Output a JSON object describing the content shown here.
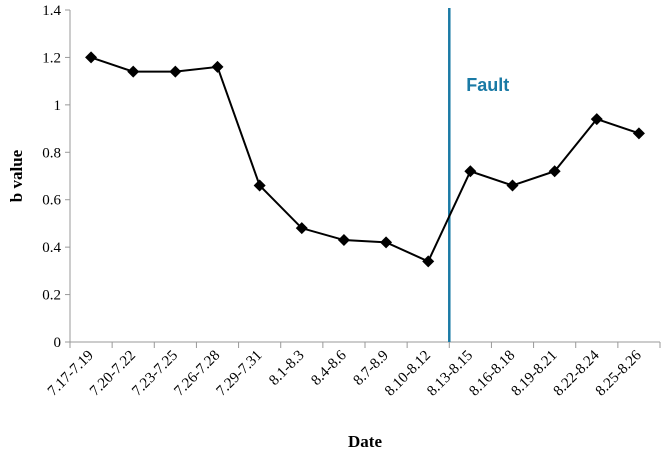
{
  "chart_data": {
    "type": "line",
    "title": "",
    "xlabel": "Date",
    "ylabel": "b value",
    "categories": [
      "7.17-7.19",
      "7.20-7.22",
      "7.23-7.25",
      "7.26-7.28",
      "7.29-7.31",
      "8.1-8.3",
      "8.4-8.6",
      "8.7-8.9",
      "8.10-8.12",
      "8.13-8.15",
      "8.16-8.18",
      "8.19-8.21",
      "8.22-8.24",
      "8.25-8.26"
    ],
    "series": [
      {
        "name": "",
        "values": [
          1.2,
          1.14,
          1.14,
          1.16,
          0.66,
          0.48,
          0.43,
          0.42,
          0.34,
          0.72,
          0.66,
          0.72,
          0.94,
          0.88
        ],
        "color": "#000000",
        "marker": "diamond"
      }
    ],
    "ylim": [
      0,
      1.4
    ],
    "yticks": [
      "0",
      "0.2",
      "0.4",
      "0.6",
      "0.8",
      "1",
      "1.2",
      "1.4"
    ],
    "grid": false,
    "annotations": [
      {
        "text": "Fault",
        "type": "vertical-line",
        "position": "between 8.10-8.12 and 8.13-8.15",
        "color": "#1a7aa5"
      }
    ]
  }
}
